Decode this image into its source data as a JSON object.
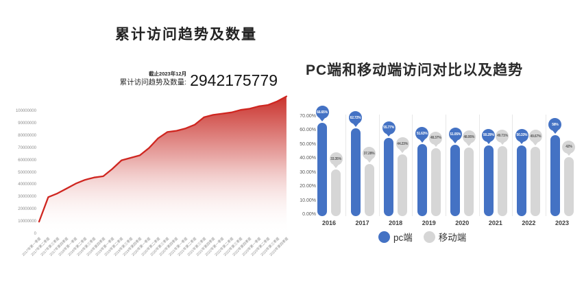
{
  "page": {
    "background": "#ffffff"
  },
  "chart_data": [
    {
      "type": "area",
      "title": "累计访问趋势及数量",
      "annotation": {
        "as_of": "截止2023年12月",
        "total_label": "累计访问趋势及数量:",
        "total_value": "2942175779"
      },
      "line_color": "#cf2620",
      "fill_top_color": "#c5211b",
      "axis_label_color": "#8c8c8c",
      "grid": false,
      "legend_position": "none",
      "ylim": [
        0,
        100000000
      ],
      "y_ticks": [
        "100000000",
        "90000000",
        "80000000",
        "70000000",
        "60000000",
        "50000000",
        "40000000",
        "30000000",
        "20000000",
        "10000000",
        "0"
      ],
      "categories": [
        "2017年第一季度",
        "2017年第二季度",
        "2017年第三季度",
        "2017年第四季度",
        "2018年第一季度",
        "2018年第二季度",
        "2018年第三季度",
        "2018年第四季度",
        "2019年第一季度",
        "2019年第二季度",
        "2019年第三季度",
        "2019年第四季度",
        "2020年第一季度",
        "2020年第二季度",
        "2020年第三季度",
        "2020年第四季度",
        "2021年第一季度",
        "2021年第二季度",
        "2021年第三季度",
        "2021年第四季度",
        "2022年第一季度",
        "2022年第二季度",
        "2022年第三季度",
        "2022年第四季度",
        "2023年第一季度",
        "2023年第二季度",
        "2023年第三季度",
        "2023年第四季度"
      ],
      "values": [
        10000000,
        30000000,
        33000000,
        37000000,
        41000000,
        44000000,
        46000000,
        47000000,
        53000000,
        60000000,
        62000000,
        64000000,
        70000000,
        78000000,
        83000000,
        84000000,
        86000000,
        89000000,
        95000000,
        97000000,
        98000000,
        99000000,
        101000000,
        102000000,
        104000000,
        105000000,
        108000000,
        112000000
      ]
    },
    {
      "type": "bar",
      "title": "PC端和移动端访问对比以及趋势",
      "categories": [
        "2016",
        "2017",
        "2018",
        "2019",
        "2020",
        "2021",
        "2022",
        "2023"
      ],
      "series": [
        {
          "name": "pc端",
          "color": "#4472c4",
          "label_text_color": "#ffffff",
          "values": [
            66.65,
            62.72,
            55.77,
            51.63,
            51.05,
            50.29,
            50.33,
            58
          ],
          "labels": [
            "66.65%",
            "62.72%",
            "55.77%",
            "51.63%",
            "51.05%",
            "50.29%",
            "50.33%",
            "58%"
          ]
        },
        {
          "name": "移动端",
          "color": "#d6d6d6",
          "label_text_color": "#595959",
          "values": [
            33.35,
            37.28,
            44.23,
            48.37,
            48.95,
            49.71,
            49.67,
            42
          ],
          "labels": [
            "33.35%",
            "37.28%",
            "44.23%",
            "48.37%",
            "48.95%",
            "49.71%",
            "49.67%",
            "42%"
          ]
        }
      ],
      "ylim": [
        0,
        70
      ],
      "y_ticks": [
        "70.00%",
        "60.00%",
        "50.00%",
        "40.00%",
        "30.00%",
        "20.00%",
        "10.00%",
        "0.00%"
      ],
      "grid": false,
      "legend_position": "bottom"
    }
  ]
}
